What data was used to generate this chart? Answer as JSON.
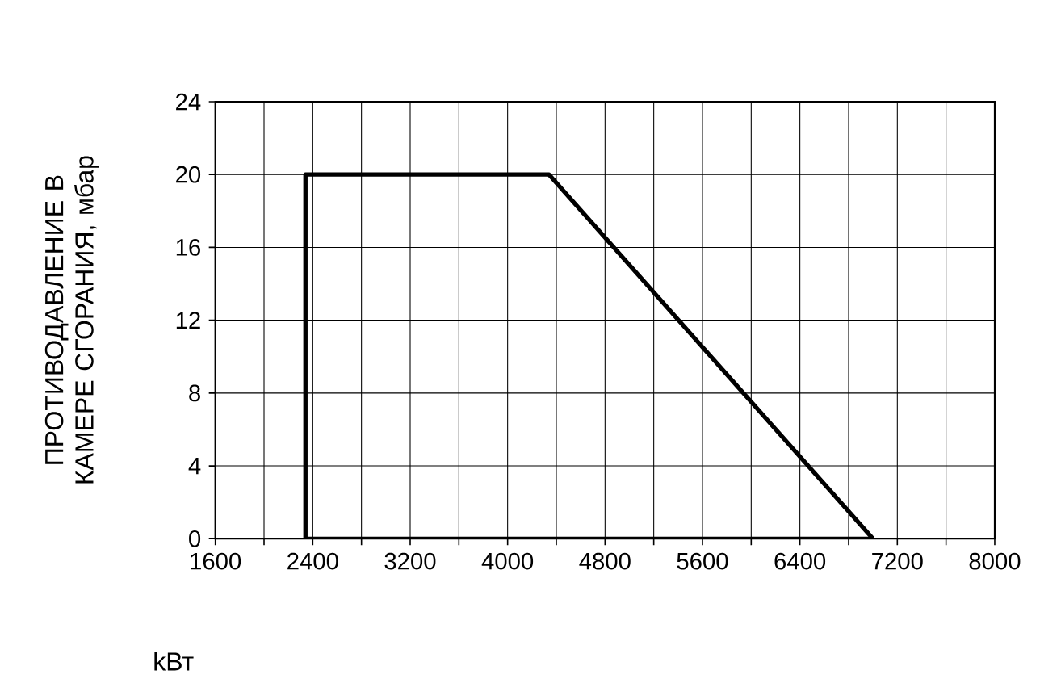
{
  "chart_data": {
    "type": "line",
    "xlabel": "kВт",
    "ylabel": "ПРОТИВОДАВЛЕНИЕ В КАМЕРЕ СГОРАНИЯ, мбар",
    "series": [
      {
        "color": "#000000",
        "x": [
          2340,
          2340,
          4340,
          7000
        ],
        "values": [
          0,
          20,
          20,
          0
        ]
      },
      {
        "color": "#000000",
        "x": [
          2340,
          7000
        ],
        "values": [
          0,
          0
        ]
      }
    ],
    "xlim": [
      1600,
      8000
    ],
    "ylim": [
      0,
      24
    ],
    "xticks": [
      1600,
      {
        "value": 2000,
        "label": null
      },
      2400,
      {
        "value": 2800,
        "label": null
      },
      3200,
      {
        "value": 3600,
        "label": null
      },
      4000,
      {
        "value": 4400,
        "label": null
      },
      4800,
      {
        "value": 5200,
        "label": null
      },
      5600,
      {
        "value": 6000,
        "label": null
      },
      6400,
      {
        "value": 6800,
        "label": null
      },
      7200,
      {
        "value": 7600,
        "label": null
      },
      8000
    ],
    "yticks": [
      0,
      4,
      8,
      12,
      16,
      20,
      24
    ],
    "grid": true,
    "marker": "none",
    "line_style": "solid"
  }
}
